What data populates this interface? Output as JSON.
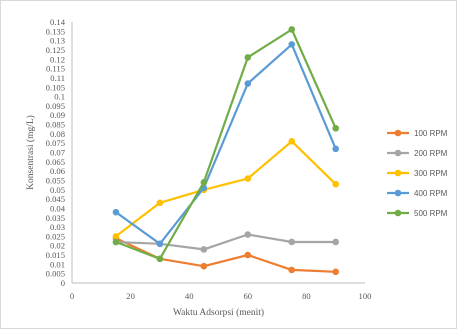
{
  "chart_data": {
    "type": "line",
    "xlabel": "Waktu Adsorpsi (menit)",
    "ylabel": "Konsentrasi (mg/L)",
    "xlim": [
      0,
      100
    ],
    "ylim": [
      0,
      0.14
    ],
    "x_ticks": [
      "0",
      "20",
      "40",
      "60",
      "80",
      "100"
    ],
    "y_ticks": [
      "0",
      "0.005",
      "0.01",
      "0.015",
      "0.02",
      "0.025",
      "0.03",
      "0.035",
      "0.04",
      "0.045",
      "0.05",
      "0.055",
      "0.06",
      "0.065",
      "0.07",
      "0.075",
      "0.08",
      "0.085",
      "0.09",
      "0.095",
      "0.1",
      "0.105",
      "0.11",
      "0.115",
      "0.12",
      "0.125",
      "0.13",
      "0.135",
      "0.14"
    ],
    "grid": false,
    "legend_position": "right",
    "x": [
      15,
      30,
      45,
      60,
      75,
      90
    ],
    "series": [
      {
        "name": "100 RPM",
        "color": "#ED7D31",
        "values": [
          0.024,
          0.013,
          0.009,
          0.015,
          0.007,
          0.006
        ]
      },
      {
        "name": "200 RPM",
        "color": "#A5A5A5",
        "values": [
          0.022,
          0.021,
          0.018,
          0.026,
          0.022,
          0.022
        ]
      },
      {
        "name": "300 RPM",
        "color": "#FFC000",
        "values": [
          0.025,
          0.043,
          0.05,
          0.056,
          0.076,
          0.053
        ]
      },
      {
        "name": "400 RPM",
        "color": "#5B9BD5",
        "values": [
          0.038,
          0.021,
          0.051,
          0.107,
          0.128,
          0.072
        ]
      },
      {
        "name": "500 RPM",
        "color": "#70AD47",
        "values": [
          0.022,
          0.013,
          0.054,
          0.121,
          0.136,
          0.083
        ]
      }
    ]
  }
}
